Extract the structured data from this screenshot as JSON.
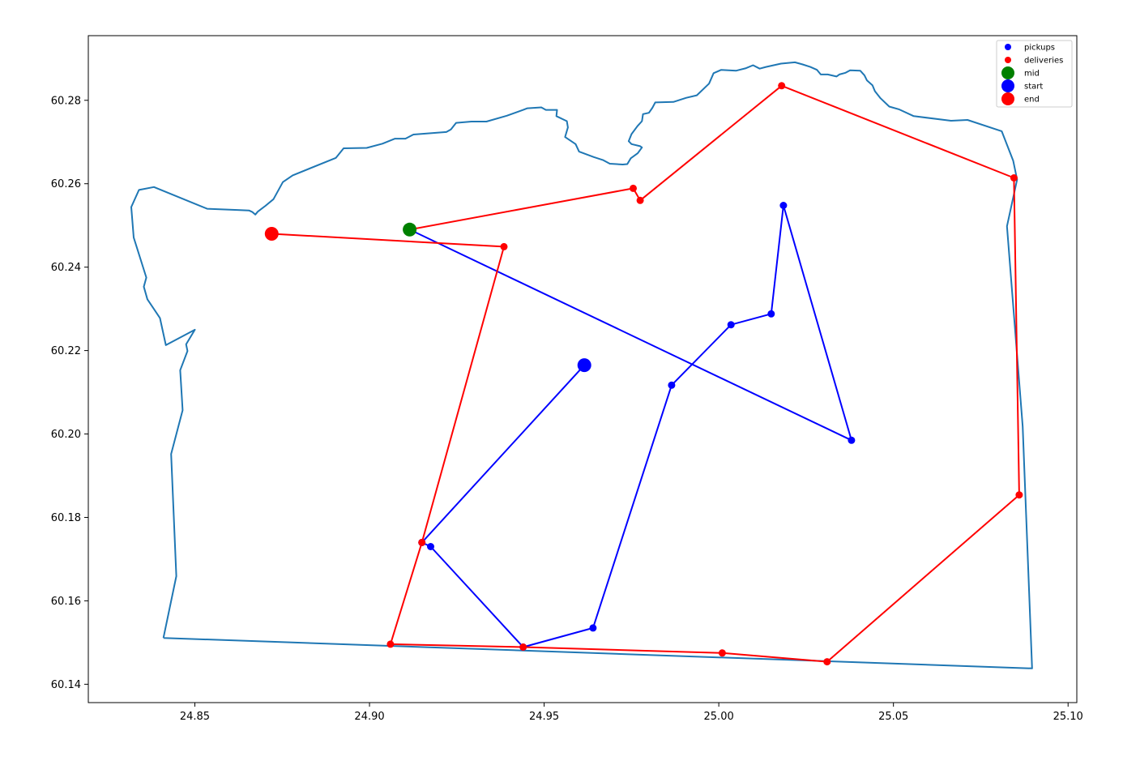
{
  "chart_data": {
    "type": "scatter",
    "title": "",
    "xlabel": "",
    "ylabel": "",
    "xlim": [
      24.8195,
      25.1025
    ],
    "ylim": [
      60.1356,
      60.2955
    ],
    "grid": false,
    "legend_position": "top-right",
    "xticks": [
      "24.85",
      "24.90",
      "24.95",
      "25.00",
      "25.05",
      "25.10"
    ],
    "yticks": [
      "60.14",
      "60.16",
      "60.18",
      "60.20",
      "60.22",
      "60.24",
      "60.26",
      "60.28"
    ],
    "legend": [
      {
        "label": "pickups",
        "color": "#0000ff",
        "size": "small"
      },
      {
        "label": "deliveries",
        "color": "#ff0000",
        "size": "small"
      },
      {
        "label": "mid",
        "color": "#008000",
        "size": "large"
      },
      {
        "label": "start",
        "color": "#0000ff",
        "size": "large"
      },
      {
        "label": "end",
        "color": "#ff0000",
        "size": "large"
      }
    ],
    "boundary": {
      "color": "#1f77b4",
      "points": [
        [
          24.841,
          60.1511
        ],
        [
          24.8447,
          60.1659
        ],
        [
          24.8432,
          60.1952
        ],
        [
          24.8465,
          60.2057
        ],
        [
          24.8458,
          60.2153
        ],
        [
          24.8479,
          60.2199
        ],
        [
          24.8475,
          60.2215
        ],
        [
          24.85,
          60.225
        ],
        [
          24.8417,
          60.2213
        ],
        [
          24.84,
          60.2278
        ],
        [
          24.8364,
          60.2323
        ],
        [
          24.8354,
          60.2353
        ],
        [
          24.8361,
          60.2375
        ],
        [
          24.8325,
          60.2471
        ],
        [
          24.8318,
          60.2544
        ],
        [
          24.834,
          60.2585
        ],
        [
          24.8383,
          60.2592
        ],
        [
          24.8535,
          60.254
        ],
        [
          24.8622,
          60.2537
        ],
        [
          24.8655,
          60.2536
        ],
        [
          24.8665,
          60.2532
        ],
        [
          24.8673,
          60.2526
        ],
        [
          24.868,
          60.2533
        ],
        [
          24.8702,
          60.2547
        ],
        [
          24.8725,
          60.2563
        ],
        [
          24.8752,
          60.2604
        ],
        [
          24.878,
          60.262
        ],
        [
          24.8904,
          60.2662
        ],
        [
          24.8926,
          60.2685
        ],
        [
          24.8992,
          60.2686
        ],
        [
          24.9037,
          60.2696
        ],
        [
          24.9073,
          60.2708
        ],
        [
          24.9103,
          60.2708
        ],
        [
          24.9126,
          60.2718
        ],
        [
          24.922,
          60.2724
        ],
        [
          24.9233,
          60.273
        ],
        [
          24.9248,
          60.2746
        ],
        [
          24.9292,
          60.2749
        ],
        [
          24.9335,
          60.2749
        ],
        [
          24.9393,
          60.2763
        ],
        [
          24.944,
          60.2777
        ],
        [
          24.9452,
          60.2781
        ],
        [
          24.9492,
          60.2783
        ],
        [
          24.9505,
          60.2777
        ],
        [
          24.9537,
          60.2777
        ],
        [
          24.9535,
          60.2762
        ],
        [
          24.9565,
          60.275
        ],
        [
          24.9568,
          60.2735
        ],
        [
          24.956,
          60.2712
        ],
        [
          24.959,
          60.2695
        ],
        [
          24.96,
          60.2677
        ],
        [
          24.9642,
          60.2664
        ],
        [
          24.9668,
          60.2657
        ],
        [
          24.9688,
          60.2648
        ],
        [
          24.9725,
          60.2646
        ],
        [
          24.9738,
          60.2647
        ],
        [
          24.9748,
          60.2661
        ],
        [
          24.9768,
          60.2673
        ],
        [
          24.978,
          60.2687
        ],
        [
          24.9775,
          60.269
        ],
        [
          24.975,
          60.2695
        ],
        [
          24.9742,
          60.2702
        ],
        [
          24.975,
          60.2719
        ],
        [
          24.9767,
          60.2738
        ],
        [
          24.978,
          60.275
        ],
        [
          24.9783,
          60.2767
        ],
        [
          24.98,
          60.277
        ],
        [
          24.981,
          60.2782
        ],
        [
          24.9818,
          60.2795
        ],
        [
          24.987,
          60.2796
        ],
        [
          24.9907,
          60.2806
        ],
        [
          24.9937,
          60.2812
        ],
        [
          24.9972,
          60.284
        ],
        [
          24.9985,
          60.2865
        ],
        [
          25.0007,
          60.2873
        ],
        [
          25.005,
          60.2871
        ],
        [
          25.0078,
          60.2877
        ],
        [
          25.0098,
          60.2884
        ],
        [
          25.0117,
          60.2876
        ],
        [
          25.0135,
          60.288
        ],
        [
          25.0178,
          60.2888
        ],
        [
          25.0218,
          60.2891
        ],
        [
          25.024,
          60.2886
        ],
        [
          25.0262,
          60.288
        ],
        [
          25.0281,
          60.2873
        ],
        [
          25.0292,
          60.2862
        ],
        [
          25.0312,
          60.2862
        ],
        [
          25.0337,
          60.2857
        ],
        [
          25.0345,
          60.2862
        ],
        [
          25.0363,
          60.2866
        ],
        [
          25.0376,
          60.2872
        ],
        [
          25.0405,
          60.2871
        ],
        [
          25.0417,
          60.286
        ],
        [
          25.0424,
          60.2848
        ],
        [
          25.044,
          60.2836
        ],
        [
          25.0447,
          60.2822
        ],
        [
          25.0463,
          60.2805
        ],
        [
          25.0488,
          60.2785
        ],
        [
          25.0517,
          60.2778
        ],
        [
          25.0558,
          60.2762
        ],
        [
          25.0665,
          60.2751
        ],
        [
          25.0712,
          60.2753
        ],
        [
          25.081,
          60.2726
        ],
        [
          25.0843,
          60.2655
        ],
        [
          25.0854,
          60.261
        ],
        [
          25.0825,
          60.2498
        ],
        [
          25.087,
          60.2018
        ],
        [
          25.0897,
          60.1438
        ],
        [
          24.841,
          60.1511
        ]
      ]
    },
    "series": [
      {
        "name": "pickups",
        "color": "#0000ff",
        "points": [
          [
            24.9615,
            60.2165
          ],
          [
            24.915,
            60.174
          ],
          [
            24.9175,
            60.173
          ],
          [
            24.944,
            60.1489
          ],
          [
            24.964,
            60.1535
          ],
          [
            24.9865,
            60.2117
          ],
          [
            25.0035,
            60.2262
          ],
          [
            25.015,
            60.2288
          ],
          [
            25.0185,
            60.2548
          ],
          [
            25.038,
            60.1985
          ],
          [
            24.9115,
            60.249
          ]
        ]
      },
      {
        "name": "deliveries",
        "color": "#ff0000",
        "points": [
          [
            24.9115,
            60.249
          ],
          [
            24.9755,
            60.2589
          ],
          [
            24.9775,
            60.256
          ],
          [
            25.018,
            60.2835
          ],
          [
            25.0845,
            60.2614
          ],
          [
            25.086,
            60.1854
          ],
          [
            25.031,
            60.1454
          ],
          [
            25.001,
            60.1475
          ],
          [
            24.944,
            60.1489
          ],
          [
            24.906,
            60.1496
          ],
          [
            24.915,
            60.174
          ],
          [
            24.9385,
            60.2449
          ],
          [
            24.872,
            60.248
          ]
        ]
      }
    ],
    "markers": {
      "mid": {
        "x": 24.9115,
        "y": 60.249,
        "color": "#008000"
      },
      "start": {
        "x": 24.9615,
        "y": 60.2165,
        "color": "#0000ff"
      },
      "end": {
        "x": 24.872,
        "y": 60.248,
        "color": "#ff0000"
      }
    }
  }
}
